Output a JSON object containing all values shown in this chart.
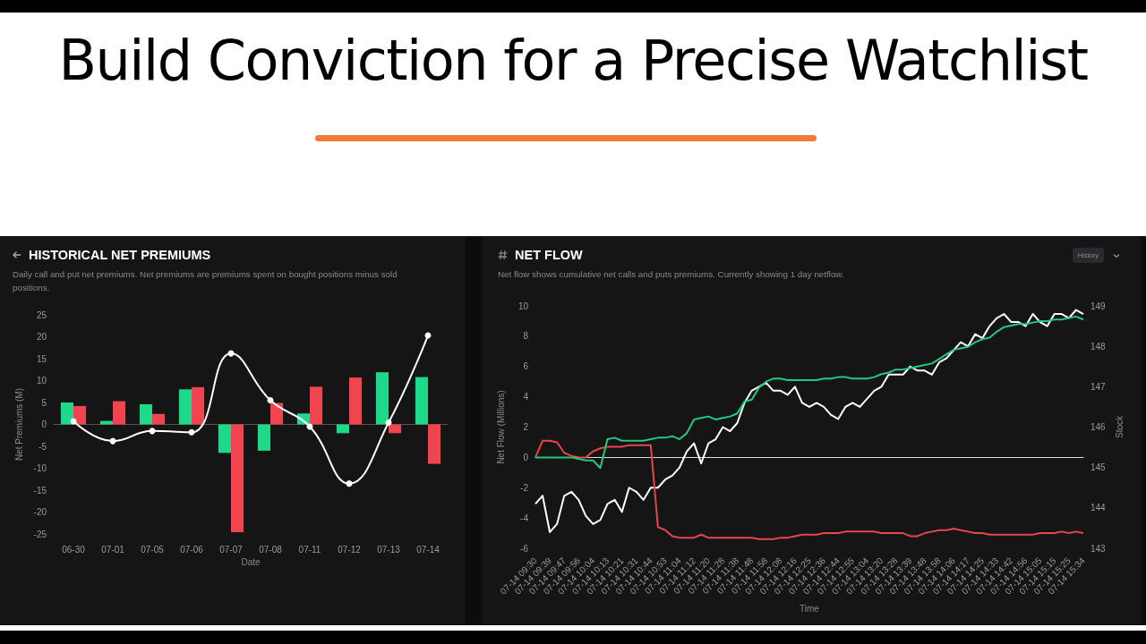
{
  "chart_data": [
    {
      "type": "other",
      "title": "Build Conviction for a Precise Watchlist"
    },
    {
      "type": "bar",
      "title": "HISTORICAL NET PREMIUMS",
      "subtitle": "Daily call and put net premiums. Net premiums are premiums spent on bought positions minus sold positions.",
      "xlabel": "Date",
      "ylabel": "Net Premiums (M)",
      "categories": [
        "06-30",
        "07-01",
        "07-05",
        "07-06",
        "07-07",
        "07-08",
        "07-11",
        "07-12",
        "07-13",
        "07-14"
      ],
      "series": [
        {
          "color": "#1ed98a",
          "values": [
            5.0,
            0.8,
            4.6,
            8.0,
            -6.5,
            -6.0,
            2.5,
            -2.0,
            11.9,
            10.8
          ]
        },
        {
          "color": "#f0454f",
          "values": [
            4.2,
            5.3,
            2.4,
            8.5,
            -24.6,
            4.9,
            8.6,
            10.7,
            -2.0,
            -9.0
          ]
        },
        {
          "type": "line",
          "color": "#ffffff",
          "marker": "circle",
          "values": [
            0.7,
            -3.8,
            -1.5,
            -1.8,
            16.2,
            5.5,
            -0.5,
            -13.5,
            0.4,
            20.3
          ]
        }
      ],
      "ylim": [
        -25,
        25
      ],
      "yticks": [
        -25,
        -20,
        -15,
        -10,
        -5,
        0,
        5,
        10,
        15,
        20,
        25
      ]
    },
    {
      "type": "line",
      "title": "NET FLOW",
      "subtitle": "Net flow shows cumulative net calls and puts premiums. Currently showing 1 day netflow.",
      "xlabel": "Time",
      "ylabel": "Net Flow (Millions)",
      "y2label": "Stock",
      "annotations": [
        "History"
      ],
      "categories": [
        "07-14 09:30",
        null,
        "07-14 09:39",
        null,
        "07-14 09:47",
        null,
        "07-14 09:56",
        null,
        "07-14 10:04",
        null,
        "07-14 10:13",
        null,
        "07-14 10:21",
        null,
        "07-14 10:31",
        null,
        "07-14 10:44",
        null,
        "07-14 10:53",
        null,
        "07-14 11:04",
        null,
        "07-14 11:12",
        null,
        "07-14 11:20",
        null,
        "07-14 11:28",
        null,
        "07-14 11:38",
        null,
        "07-14 11:48",
        null,
        "07-14 11:58",
        null,
        "07-14 12:08",
        null,
        "07-14 12:16",
        null,
        "07-14 12:25",
        null,
        "07-14 12:36",
        null,
        "07-14 12:44",
        null,
        "07-14 12:55",
        null,
        "07-14 13:04",
        null,
        "07-14 13:20",
        null,
        "07-14 13:28",
        null,
        "07-14 13:39",
        null,
        "07-14 13:48",
        null,
        "07-14 13:58",
        null,
        "07-14 14:06",
        null,
        "07-14 14:17",
        null,
        "07-14 14:25",
        null,
        "07-14 14:33",
        null,
        "07-14 14:42",
        null,
        "07-14 14:56",
        null,
        "07-14 15:05",
        null,
        "07-14 15:15",
        null,
        "07-14 15:25",
        null,
        "07-14 15:34"
      ],
      "series": [
        {
          "color": "#ffffff",
          "axis": "y2",
          "values": [
            144.1,
            144.3,
            143.4,
            143.6,
            144.3,
            144.4,
            144.2,
            143.8,
            143.6,
            143.7,
            144.1,
            144.2,
            143.9,
            144.5,
            144.4,
            144.2,
            144.5,
            144.5,
            144.7,
            144.8,
            145.0,
            145.4,
            145.6,
            145.1,
            145.6,
            145.7,
            146.0,
            145.9,
            146.1,
            146.6,
            146.9,
            147.0,
            147.1,
            146.9,
            146.9,
            146.8,
            147.0,
            146.6,
            146.5,
            146.6,
            146.5,
            146.3,
            146.2,
            146.5,
            146.6,
            146.5,
            146.7,
            146.9,
            147.0,
            147.3,
            147.3,
            147.3,
            147.5,
            147.4,
            147.4,
            147.3,
            147.6,
            147.7,
            147.9,
            148.1,
            148.0,
            148.3,
            148.2,
            148.5,
            148.7,
            148.8,
            148.6,
            148.6,
            148.5,
            148.8,
            148.6,
            148.5,
            148.8,
            148.8,
            148.7,
            148.9,
            148.8
          ]
        },
        {
          "color": "#e8454c",
          "values": [
            0,
            1.1,
            1.1,
            1.0,
            0.3,
            0.1,
            0,
            0,
            0.4,
            0.6,
            0.7,
            0.7,
            0.7,
            0.8,
            0.8,
            0.8,
            0.8,
            -4.6,
            -4.8,
            -5.2,
            -5.3,
            -5.3,
            -5.3,
            -5.1,
            -5.3,
            -5.3,
            -5.3,
            -5.3,
            -5.3,
            -5.3,
            -5.3,
            -5.4,
            -5.4,
            -5.4,
            -5.3,
            -5.3,
            -5.2,
            -5.1,
            -5.1,
            -5.1,
            -5.0,
            -5.0,
            -5.0,
            -4.9,
            -4.9,
            -4.9,
            -4.9,
            -4.9,
            -5.0,
            -5.0,
            -5.0,
            -5.0,
            -5.2,
            -5.2,
            -5.0,
            -4.9,
            -4.8,
            -4.8,
            -4.7,
            -4.8,
            -4.9,
            -5.0,
            -5.0,
            -5.1,
            -5.1,
            -5.1,
            -5.1,
            -5.1,
            -5.1,
            -5.1,
            -5.0,
            -5.0,
            -5.0,
            -4.9,
            -5.0,
            -4.9,
            -5.0
          ]
        },
        {
          "color": "#22c97f",
          "values": [
            0,
            0,
            0,
            0,
            0,
            0,
            -0.1,
            -0.2,
            -0.2,
            -0.7,
            1.2,
            1.3,
            1.1,
            1.1,
            1.1,
            1.1,
            1.2,
            1.3,
            1.3,
            1.4,
            1.2,
            1.6,
            2.5,
            2.6,
            2.7,
            2.5,
            2.6,
            2.7,
            2.9,
            3.7,
            3.8,
            4.6,
            5.0,
            5.2,
            5.2,
            5.1,
            5.1,
            5.1,
            5.1,
            5.1,
            5.2,
            5.2,
            5.3,
            5.3,
            5.2,
            5.2,
            5.2,
            5.3,
            5.5,
            5.6,
            5.8,
            5.8,
            5.9,
            6.0,
            6.1,
            6.2,
            6.5,
            6.8,
            7.1,
            7.2,
            7.3,
            7.6,
            7.8,
            7.9,
            8.3,
            8.6,
            8.7,
            8.8,
            8.8,
            8.9,
            9.0,
            9.0,
            9.1,
            9.1,
            9.2,
            9.3,
            9.1
          ]
        }
      ],
      "ylim": [
        -6,
        10
      ],
      "yticks": [
        -6,
        -4,
        -2,
        0,
        2,
        4,
        6,
        8,
        10
      ],
      "y2lim": [
        143,
        149
      ],
      "y2ticks": [
        143,
        144,
        145,
        146,
        147,
        148,
        149
      ]
    }
  ]
}
